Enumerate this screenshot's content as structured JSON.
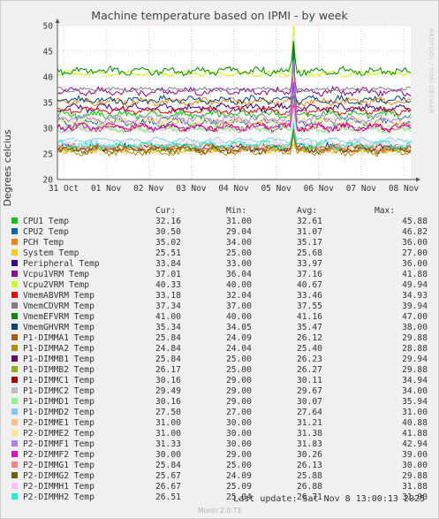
{
  "chart_data": {
    "type": "line",
    "title": "Machine temperature based on IPMI - by week",
    "ylabel": "Degrees celcius",
    "side_label": "RRDTOOL / TOBI OETIKER",
    "ylim": [
      20,
      50
    ],
    "yticks": [
      20,
      25,
      30,
      35,
      40,
      45,
      50
    ],
    "xticks": [
      "31 Oct",
      "01 Nov",
      "02 Nov",
      "03 Nov",
      "04 Nov",
      "05 Nov",
      "06 Nov",
      "07 Nov",
      "08 Nov"
    ],
    "legend_headers": {
      "cur": "Cur:",
      "min": "Min:",
      "avg": "Avg:",
      "max": "Max:"
    },
    "series": [
      {
        "name": "CPU1 Temp",
        "color": "#00cc00",
        "cur": "32.16",
        "min": "31.00",
        "avg": "32.61",
        "max": "45.88"
      },
      {
        "name": "CPU2 Temp",
        "color": "#0066b3",
        "cur": "30.50",
        "min": "29.04",
        "avg": "31.07",
        "max": "46.82"
      },
      {
        "name": "PCH Temp",
        "color": "#ff8000",
        "cur": "35.02",
        "min": "34.00",
        "avg": "35.17",
        "max": "36.00"
      },
      {
        "name": "System Temp",
        "color": "#ffcc00",
        "cur": "25.51",
        "min": "25.00",
        "avg": "25.68",
        "max": "27.00"
      },
      {
        "name": "Peripheral Temp",
        "color": "#330099",
        "cur": "33.84",
        "min": "33.00",
        "avg": "33.97",
        "max": "36.00"
      },
      {
        "name": "Vcpu1VRM Temp",
        "color": "#990099",
        "cur": "37.01",
        "min": "36.04",
        "avg": "37.16",
        "max": "41.88"
      },
      {
        "name": "Vcpu2VRM Temp",
        "color": "#ccff00",
        "cur": "40.33",
        "min": "40.00",
        "avg": "40.67",
        "max": "49.94"
      },
      {
        "name": "VmemABVRM Temp",
        "color": "#ff0000",
        "cur": "33.18",
        "min": "32.04",
        "avg": "33.46",
        "max": "34.93"
      },
      {
        "name": "VmemCDVRM Temp",
        "color": "#808080",
        "cur": "37.34",
        "min": "37.00",
        "avg": "37.55",
        "max": "39.94"
      },
      {
        "name": "VmemEFVRM Temp",
        "color": "#008f00",
        "cur": "41.00",
        "min": "40.00",
        "avg": "41.16",
        "max": "47.00"
      },
      {
        "name": "VmemGHVRM Temp",
        "color": "#00487d",
        "cur": "35.34",
        "min": "34.05",
        "avg": "35.47",
        "max": "38.00"
      },
      {
        "name": "P1-DIMMA1 Temp",
        "color": "#b35a00",
        "cur": "25.84",
        "min": "24.09",
        "avg": "26.12",
        "max": "29.88"
      },
      {
        "name": "P1-DIMMA2 Temp",
        "color": "#b38f00",
        "cur": "24.84",
        "min": "24.04",
        "avg": "25.40",
        "max": "28.88"
      },
      {
        "name": "P1-DIMMB1 Temp",
        "color": "#6b006b",
        "cur": "25.84",
        "min": "25.00",
        "avg": "26.23",
        "max": "29.94"
      },
      {
        "name": "P1-DIMMB2 Temp",
        "color": "#8fb300",
        "cur": "26.17",
        "min": "25.00",
        "avg": "26.27",
        "max": "29.88"
      },
      {
        "name": "P1-DIMMC1 Temp",
        "color": "#b30000",
        "cur": "30.16",
        "min": "29.00",
        "avg": "30.11",
        "max": "34.94"
      },
      {
        "name": "P1-DIMMC2 Temp",
        "color": "#bebebe",
        "cur": "29.49",
        "min": "29.00",
        "avg": "29.67",
        "max": "34.00"
      },
      {
        "name": "P1-DIMMD1 Temp",
        "color": "#80ff80",
        "cur": "30.16",
        "min": "29.00",
        "avg": "30.07",
        "max": "35.94"
      },
      {
        "name": "P1-DIMMD2 Temp",
        "color": "#80c9ff",
        "cur": "27.50",
        "min": "27.00",
        "avg": "27.64",
        "max": "31.00"
      },
      {
        "name": "P2-DIMME1 Temp",
        "color": "#ffc080",
        "cur": "31.00",
        "min": "30.00",
        "avg": "31.21",
        "max": "40.88"
      },
      {
        "name": "P2-DIMME2 Temp",
        "color": "#ffe680",
        "cur": "31.00",
        "min": "30.00",
        "avg": "31.38",
        "max": "41.88"
      },
      {
        "name": "P2-DIMMF1 Temp",
        "color": "#aa80ff",
        "cur": "31.33",
        "min": "30.00",
        "avg": "31.83",
        "max": "42.94"
      },
      {
        "name": "P2-DIMMF2 Temp",
        "color": "#ee00cc",
        "cur": "30.00",
        "min": "29.00",
        "avg": "30.26",
        "max": "39.00"
      },
      {
        "name": "P2-DIMMG1 Temp",
        "color": "#ff8080",
        "cur": "25.84",
        "min": "25.00",
        "avg": "26.13",
        "max": "30.00"
      },
      {
        "name": "P2-DIMMG2 Temp",
        "color": "#666600",
        "cur": "25.67",
        "min": "24.09",
        "avg": "25.88",
        "max": "29.88"
      },
      {
        "name": "P2-DIMMH1 Temp",
        "color": "#ffbfff",
        "cur": "26.67",
        "min": "25.09",
        "avg": "26.88",
        "max": "31.88"
      },
      {
        "name": "P2-DIMMH2 Temp",
        "color": "#00ffcc",
        "cur": "26.51",
        "min": "25.04",
        "avg": "26.71",
        "max": "31.00"
      }
    ]
  },
  "footer": {
    "last_update": "Last update: Sat Nov  8 13:00:13 2025",
    "version": "Munin 2.0.73"
  }
}
